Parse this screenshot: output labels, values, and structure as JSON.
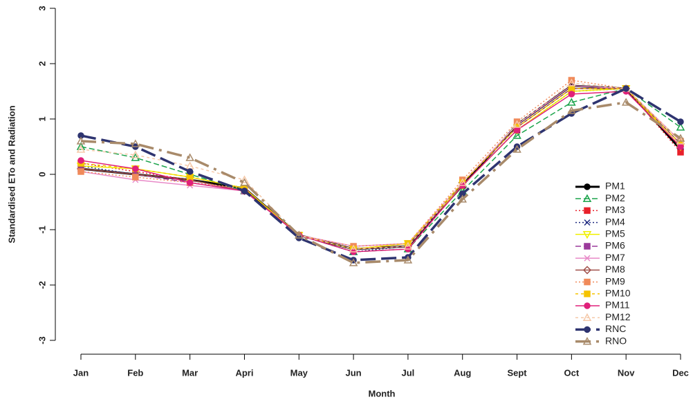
{
  "chart_data": {
    "type": "line",
    "x_label": "Month",
    "y_label": "Standardised ETo and Radiation",
    "categories": [
      "Jan",
      "Feb",
      "Mar",
      "Apri",
      "May",
      "Jun",
      "Jul",
      "Aug",
      "Sept",
      "Oct",
      "Nov",
      "Dec"
    ],
    "ylim": [
      -3,
      3
    ],
    "yticks": [
      3,
      2,
      1,
      0,
      -1,
      -2,
      -3
    ],
    "grid": false,
    "legend": "lower-right",
    "series": [
      {
        "name": "PM1",
        "color": "#000000",
        "dash": "",
        "width": 3,
        "marker": "circle",
        "values": [
          0.1,
          0.0,
          -0.1,
          -0.25,
          -1.1,
          -1.35,
          -1.3,
          -0.2,
          0.9,
          1.6,
          1.55,
          0.45
        ]
      },
      {
        "name": "PM2",
        "color": "#1aa34a",
        "dash": "8,4",
        "width": 1.5,
        "marker": "triangle",
        "values": [
          0.5,
          0.3,
          0.0,
          -0.3,
          -1.1,
          -1.4,
          -1.35,
          -0.3,
          0.7,
          1.3,
          1.55,
          0.85
        ]
      },
      {
        "name": "PM3",
        "color": "#e8202a",
        "dash": "2,3",
        "width": 1.5,
        "marker": "square",
        "values": [
          0.2,
          0.05,
          -0.1,
          -0.3,
          -1.1,
          -1.35,
          -1.3,
          -0.2,
          0.8,
          1.5,
          1.55,
          0.4
        ]
      },
      {
        "name": "PM4",
        "color": "#1f2a80",
        "dash": "2,3",
        "width": 1.5,
        "marker": "cross",
        "values": [
          0.15,
          0.0,
          -0.1,
          -0.3,
          -1.1,
          -1.4,
          -1.3,
          -0.2,
          0.8,
          1.5,
          1.55,
          0.5
        ]
      },
      {
        "name": "PM5",
        "color": "#f0f000",
        "dash": "",
        "width": 1.5,
        "marker": "down",
        "values": [
          0.15,
          0.1,
          -0.05,
          -0.25,
          -1.1,
          -1.35,
          -1.25,
          -0.2,
          0.8,
          1.5,
          1.55,
          0.5
        ]
      },
      {
        "name": "PM6",
        "color": "#9b3a9b",
        "dash": "8,4",
        "width": 1.5,
        "marker": "square",
        "values": [
          0.1,
          0.0,
          -0.15,
          -0.3,
          -1.1,
          -1.35,
          -1.3,
          -0.15,
          0.85,
          1.55,
          1.55,
          0.55
        ]
      },
      {
        "name": "PM7",
        "color": "#e88ac8",
        "dash": "",
        "width": 1.5,
        "marker": "cross",
        "values": [
          0.05,
          -0.1,
          -0.2,
          -0.3,
          -1.1,
          -1.3,
          -1.25,
          -0.15,
          0.9,
          1.6,
          1.55,
          0.6
        ]
      },
      {
        "name": "PM8",
        "color": "#a0504a",
        "dash": "",
        "width": 1.5,
        "marker": "diamond",
        "values": [
          0.1,
          0.0,
          -0.1,
          -0.3,
          -1.1,
          -1.35,
          -1.3,
          -0.15,
          0.85,
          1.55,
          1.55,
          0.55
        ]
      },
      {
        "name": "PM9",
        "color": "#f08a5a",
        "dash": "2,3",
        "width": 1.5,
        "marker": "square",
        "values": [
          0.05,
          -0.05,
          -0.15,
          -0.25,
          -1.1,
          -1.3,
          -1.25,
          -0.1,
          0.95,
          1.7,
          1.55,
          0.6
        ]
      },
      {
        "name": "PM10",
        "color": "#f5c400",
        "dash": "4,4",
        "width": 1.5,
        "marker": "square",
        "values": [
          0.2,
          0.1,
          -0.05,
          -0.25,
          -1.1,
          -1.35,
          -1.25,
          -0.15,
          0.85,
          1.55,
          1.55,
          0.55
        ]
      },
      {
        "name": "PM11",
        "color": "#e0207a",
        "dash": "",
        "width": 1.5,
        "marker": "circle",
        "values": [
          0.25,
          0.1,
          -0.15,
          -0.3,
          -1.1,
          -1.4,
          -1.35,
          -0.2,
          0.8,
          1.45,
          1.5,
          0.5
        ]
      },
      {
        "name": "PM12",
        "color": "#f5c8a8",
        "dash": "4,4",
        "width": 1.5,
        "marker": "triangle",
        "values": [
          0.45,
          0.35,
          0.15,
          -0.1,
          -1.1,
          -1.35,
          -1.3,
          -0.15,
          0.9,
          1.65,
          1.55,
          0.6
        ]
      },
      {
        "name": "RNC",
        "color": "#2e3470",
        "dash": "22,8",
        "width": 3.5,
        "marker": "circle",
        "values": [
          0.7,
          0.5,
          0.05,
          -0.3,
          -1.15,
          -1.55,
          -1.5,
          -0.35,
          0.5,
          1.1,
          1.55,
          0.95
        ]
      },
      {
        "name": "RNO",
        "color": "#a88a6a",
        "dash": "22,8,4,8",
        "width": 3.5,
        "marker": "triangle",
        "values": [
          0.6,
          0.55,
          0.3,
          -0.15,
          -1.1,
          -1.6,
          -1.55,
          -0.45,
          0.45,
          1.15,
          1.3,
          0.65
        ]
      }
    ]
  }
}
